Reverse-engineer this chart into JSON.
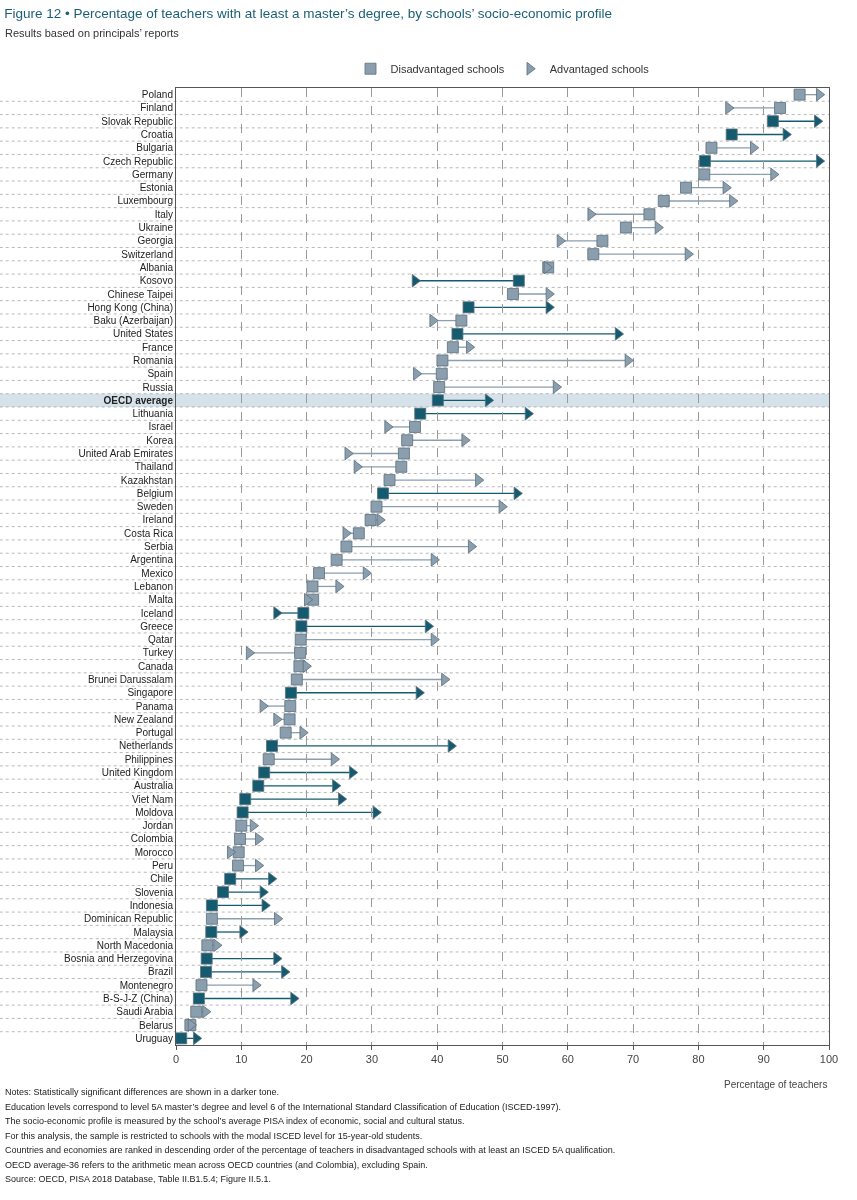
{
  "chart_data": {
    "type": "scatter",
    "orientation": "horizontal",
    "title": "Figure 12 • Percentage of teachers with at least a master’s degree, by schools’ socio-economic profile",
    "subtitle": "Results based on principals’ reports",
    "xlabel": "Percentage of teachers",
    "categories": [
      "Poland",
      "Finland",
      "Slovak Republic",
      "Croatia",
      "Bulgaria",
      "Czech Republic",
      "Germany",
      "Estonia",
      "Luxembourg",
      "Italy",
      "Ukraine",
      "Georgia",
      "Switzerland",
      "Albania",
      "Kosovo",
      "Chinese Taipei",
      "Hong Kong (China)",
      "Baku (Azerbaijan)",
      "United States",
      "France",
      "Romania",
      "Spain",
      "Russia",
      "OECD average",
      "Lithuania",
      "Israel",
      "Korea",
      "United Arab Emirates",
      "Thailand",
      "Kazakhstan",
      "Belgium",
      "Sweden",
      "Ireland",
      "Costa Rica",
      "Serbia",
      "Argentina",
      "Mexico",
      "Lebanon",
      "Malta",
      "Iceland",
      "Greece",
      "Qatar",
      "Turkey",
      "Canada",
      "Brunei Darussalam",
      "Singapore",
      "Panama",
      "New Zealand",
      "Portugal",
      "Netherlands",
      "Philippines",
      "United Kingdom",
      "Australia",
      "Viet Nam",
      "Moldova",
      "Jordan",
      "Colombia",
      "Morocco",
      "Peru",
      "Chile",
      "Slovenia",
      "Indonesia",
      "Dominican Republic",
      "Malaysia",
      "North Macedonia",
      "Bosnia and Herzegovina",
      "Brazil",
      "Montenegro",
      "B-S-J-Z (China)",
      "Saudi Arabia",
      "Belarus",
      "Uruguay"
    ],
    "series": [
      {
        "name": "Disadvantaged schools",
        "marker": "square",
        "values": [
          95.5,
          92.5,
          91.4,
          85.1,
          82.0,
          81.0,
          80.9,
          78.1,
          74.7,
          72.5,
          68.9,
          65.3,
          63.9,
          57.0,
          52.5,
          51.6,
          44.8,
          43.7,
          43.1,
          42.4,
          40.8,
          40.7,
          40.3,
          40.1,
          37.4,
          36.6,
          35.4,
          34.9,
          34.5,
          32.7,
          31.7,
          30.7,
          29.8,
          28.0,
          26.1,
          24.6,
          21.9,
          20.9,
          21.0,
          19.5,
          19.2,
          19.1,
          19.0,
          18.9,
          18.5,
          17.6,
          17.5,
          17.4,
          16.8,
          14.7,
          14.2,
          13.5,
          12.6,
          10.6,
          10.2,
          10.0,
          9.8,
          9.6,
          9.5,
          8.3,
          7.2,
          5.5,
          5.5,
          5.4,
          4.8,
          4.7,
          4.6,
          3.9,
          3.5,
          3.1,
          2.2,
          0.8
        ],
        "colors": [
          "#8a9eae",
          "#8a9eae",
          "#145b70",
          "#145b70",
          "#8a9eae",
          "#145b70",
          "#8a9eae",
          "#8a9eae",
          "#8a9eae",
          "#8a9eae",
          "#8a9eae",
          "#8a9eae",
          "#8a9eae",
          "#8a9eae",
          "#145b70",
          "#8a9eae",
          "#145b70",
          "#8a9eae",
          "#145b70",
          "#8a9eae",
          "#8a9eae",
          "#8a9eae",
          "#8a9eae",
          "#145b70",
          "#145b70",
          "#8a9eae",
          "#8a9eae",
          "#8a9eae",
          "#8a9eae",
          "#8a9eae",
          "#145b70",
          "#8a9eae",
          "#8a9eae",
          "#8a9eae",
          "#8a9eae",
          "#8a9eae",
          "#8a9eae",
          "#8a9eae",
          "#8a9eae",
          "#145b70",
          "#145b70",
          "#8a9eae",
          "#8a9eae",
          "#8a9eae",
          "#8a9eae",
          "#145b70",
          "#8a9eae",
          "#8a9eae",
          "#8a9eae",
          "#145b70",
          "#8a9eae",
          "#145b70",
          "#145b70",
          "#145b70",
          "#145b70",
          "#8a9eae",
          "#8a9eae",
          "#8a9eae",
          "#8a9eae",
          "#145b70",
          "#145b70",
          "#145b70",
          "#8a9eae",
          "#145b70",
          "#8a9eae",
          "#145b70",
          "#145b70",
          "#8a9eae",
          "#145b70",
          "#8a9eae",
          "#8a9eae",
          "#145b70"
        ]
      },
      {
        "name": "Advantaged schools",
        "marker": "triangle",
        "values": [
          98.5,
          84.6,
          98.2,
          93.4,
          88.4,
          98.5,
          91.5,
          84.2,
          85.2,
          63.5,
          73.8,
          58.8,
          78.4,
          56.8,
          36.6,
          57.1,
          57.1,
          39.3,
          67.7,
          44.9,
          69.2,
          36.8,
          58.2,
          47.8,
          53.9,
          32.4,
          44.2,
          26.3,
          27.7,
          46.3,
          52.2,
          49.9,
          31.2,
          26.0,
          45.2,
          39.5,
          29.1,
          24.9,
          20.1,
          15.4,
          38.6,
          39.5,
          11.2,
          19.9,
          41.1,
          37.2,
          13.3,
          15.4,
          19.4,
          42.1,
          24.2,
          27.0,
          24.4,
          25.3,
          30.6,
          11.8,
          12.6,
          8.3,
          12.6,
          14.6,
          13.3,
          13.6,
          15.5,
          10.2,
          6.2,
          15.4,
          16.6,
          12.2,
          18.0,
          4.5,
          2.3,
          3.1
        ],
        "colors": [
          "#8a9eae",
          "#8a9eae",
          "#145b70",
          "#145b70",
          "#8a9eae",
          "#145b70",
          "#8a9eae",
          "#8a9eae",
          "#8a9eae",
          "#8a9eae",
          "#8a9eae",
          "#8a9eae",
          "#8a9eae",
          "#8a9eae",
          "#145b70",
          "#8a9eae",
          "#145b70",
          "#8a9eae",
          "#145b70",
          "#8a9eae",
          "#8a9eae",
          "#8a9eae",
          "#8a9eae",
          "#145b70",
          "#145b70",
          "#8a9eae",
          "#8a9eae",
          "#8a9eae",
          "#8a9eae",
          "#8a9eae",
          "#145b70",
          "#8a9eae",
          "#8a9eae",
          "#8a9eae",
          "#8a9eae",
          "#8a9eae",
          "#8a9eae",
          "#8a9eae",
          "#8a9eae",
          "#145b70",
          "#145b70",
          "#8a9eae",
          "#8a9eae",
          "#8a9eae",
          "#8a9eae",
          "#145b70",
          "#8a9eae",
          "#8a9eae",
          "#8a9eae",
          "#145b70",
          "#8a9eae",
          "#145b70",
          "#145b70",
          "#145b70",
          "#145b70",
          "#8a9eae",
          "#8a9eae",
          "#8a9eae",
          "#8a9eae",
          "#145b70",
          "#145b70",
          "#145b70",
          "#8a9eae",
          "#145b70",
          "#8a9eae",
          "#145b70",
          "#145b70",
          "#8a9eae",
          "#145b70",
          "#8a9eae",
          "#8a9eae",
          "#145b70"
        ]
      }
    ],
    "xlim": [
      0,
      100
    ],
    "xticks": [
      0,
      10,
      20,
      30,
      40,
      50,
      60,
      70,
      80,
      90,
      100
    ],
    "grid": true,
    "legend": "top",
    "bands": [
      {
        "axis": "y",
        "from": "OECD average",
        "to": "OECD average",
        "color": "#d5e2ea"
      }
    ],
    "annotations": [
      "Notes: Statistically significant differences are shown in a darker tone.",
      "Education levels correspond to level 5A master’s degree and level 6 of the International Standard Classification of Education (ISCED-1997).",
      "The socio-economic profile is measured by the school’s average PISA index of economic, social and cultural status.",
      "For this analysis, the sample is restricted to schools with the modal ISCED level for 15-year-old students.",
      "Countries and economies are ranked in descending order of the percentage of teachers in disadvantaged schools with at least an ISCED 5A qualification.",
      "OECD average-36 refers to the arithmetic mean across OECD countries (and Colombia), excluding Spain.",
      "Source: OECD, PISA 2018 Database, Table II.B1.5.4; Figure II.5.1."
    ]
  }
}
